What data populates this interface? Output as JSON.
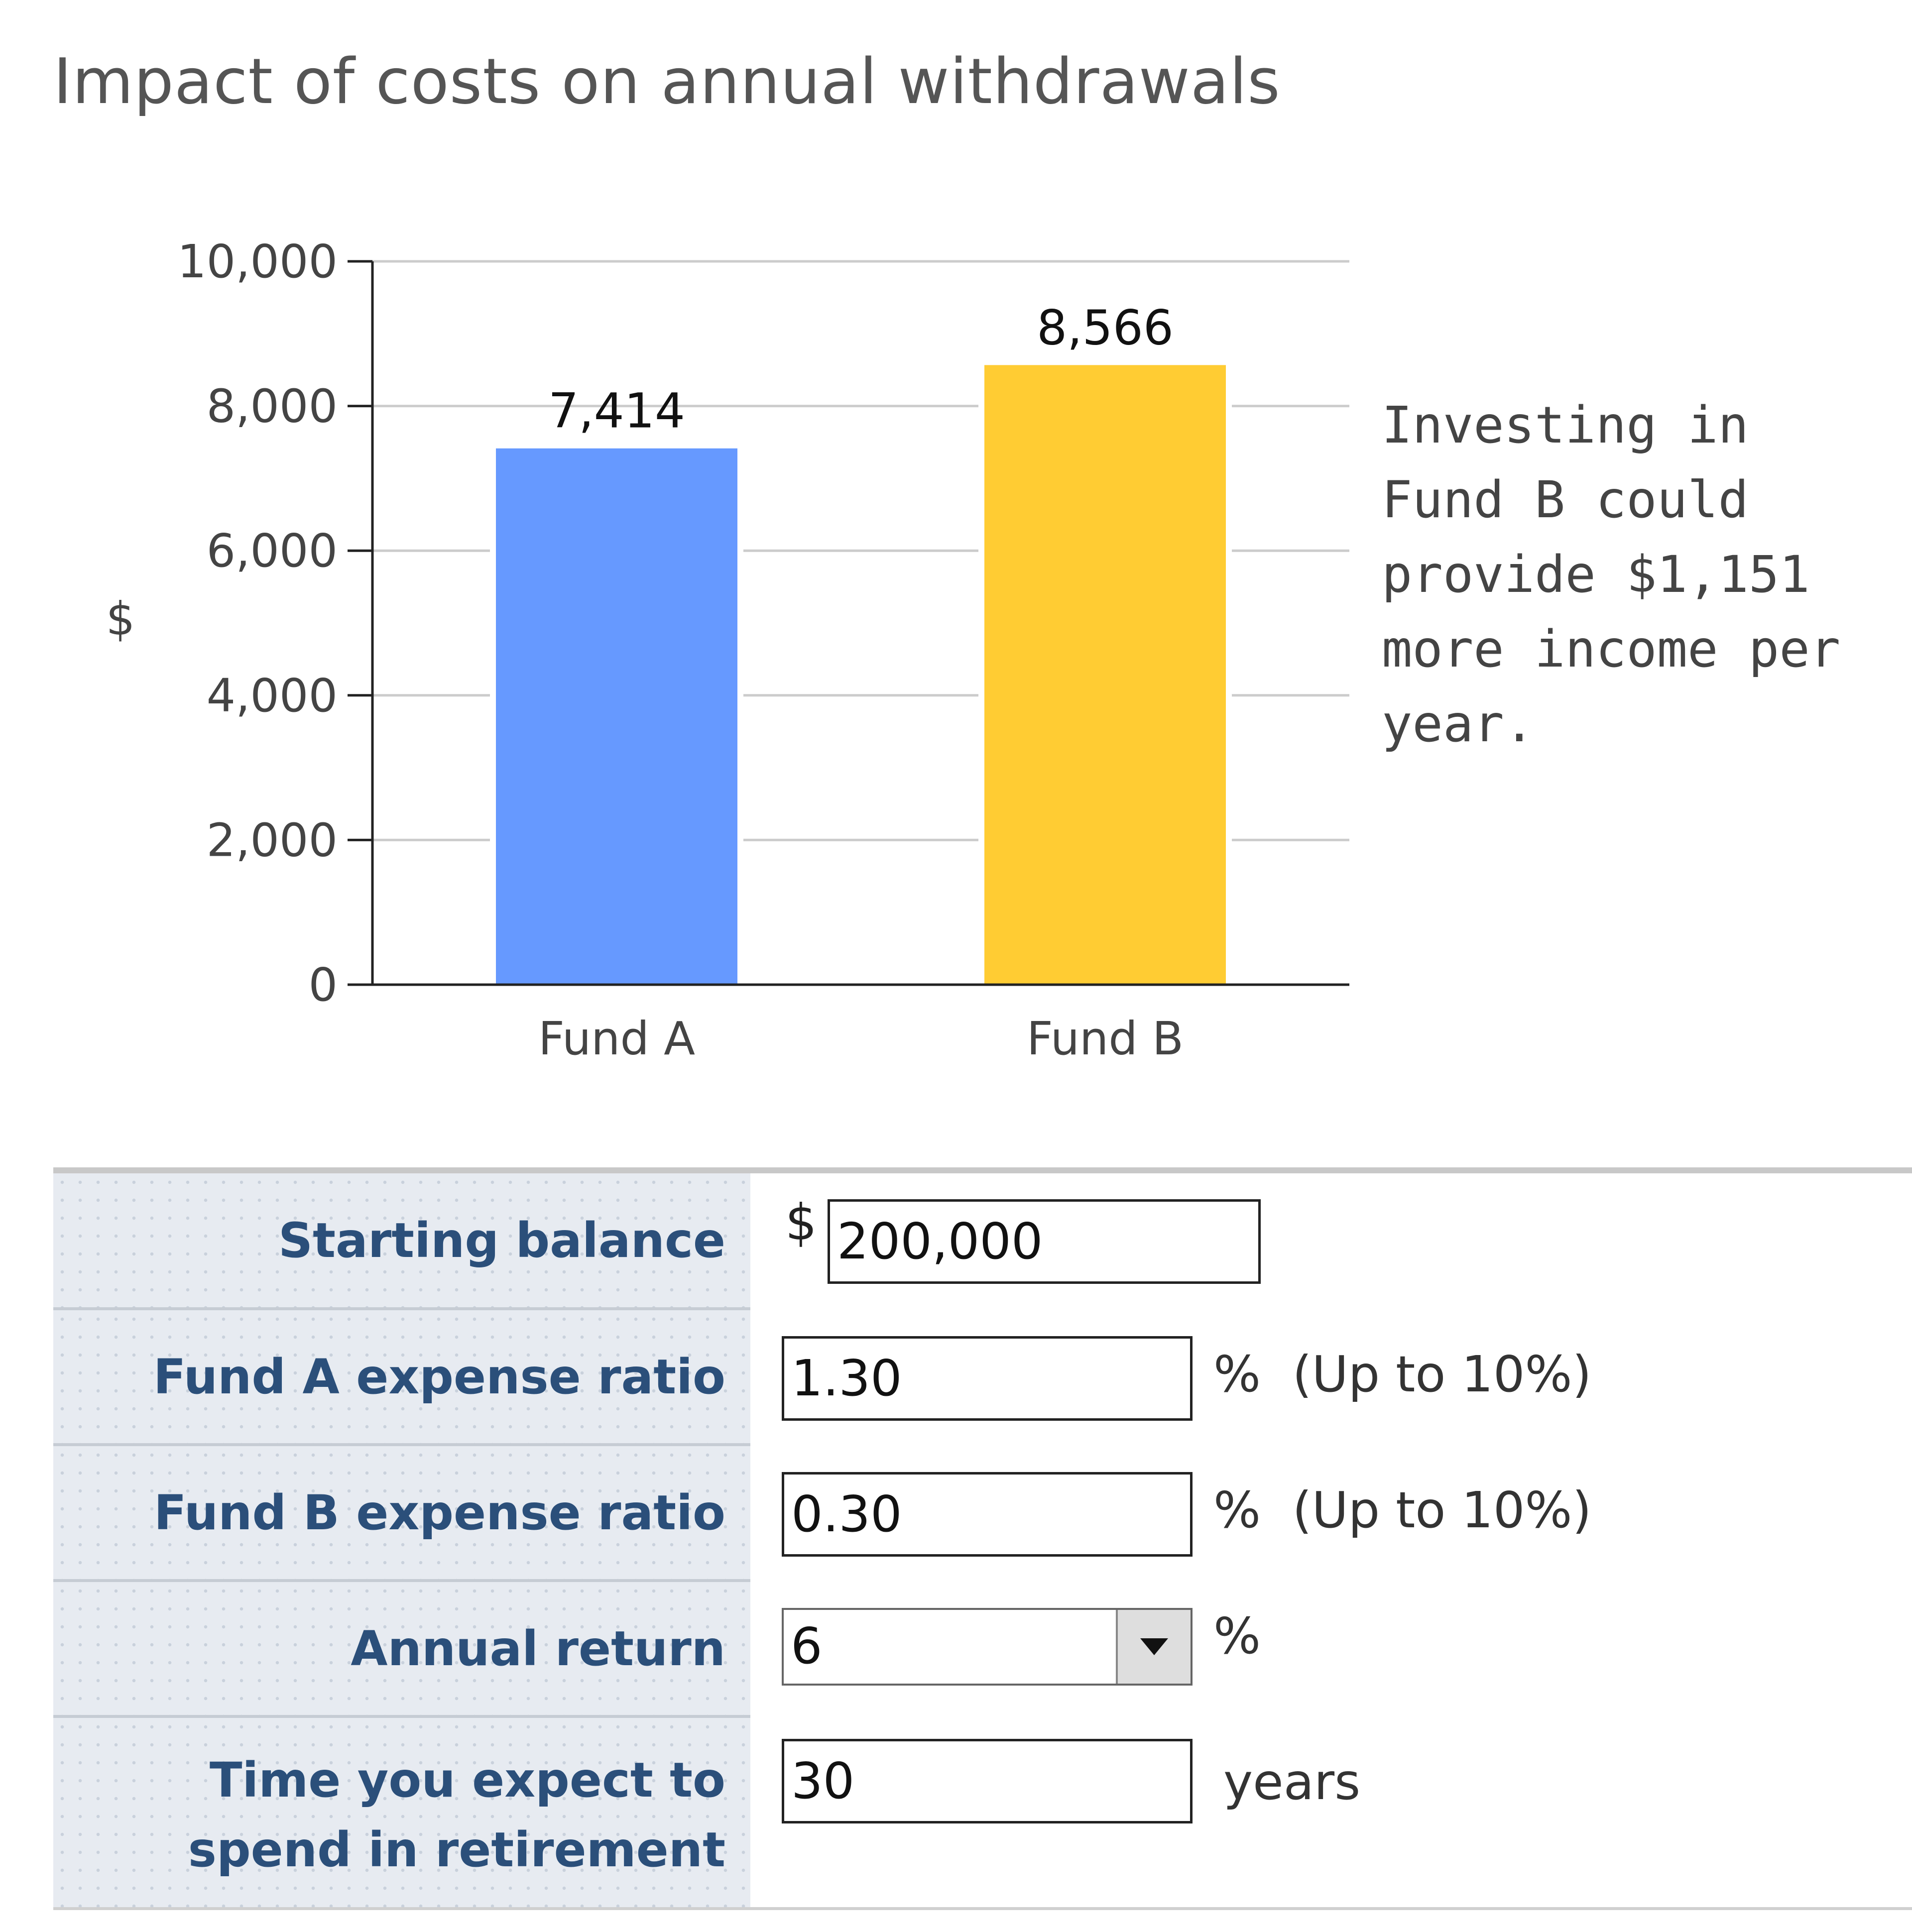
{
  "chart_data": {
    "type": "bar",
    "title": "Impact of costs on annual withdrawals",
    "ylabel": "$",
    "xlabel": "",
    "categories": [
      "Fund A",
      "Fund B"
    ],
    "values": [
      7414,
      8566
    ],
    "data_labels": [
      "7,414",
      "8,566"
    ],
    "colors": [
      "#6699ff",
      "#ffcc33"
    ],
    "ylim": [
      0,
      10000
    ],
    "yticks": [
      0,
      2000,
      4000,
      6000,
      8000,
      10000
    ],
    "ytick_labels": [
      "0",
      "2,000",
      "4,000",
      "6,000",
      "8,000",
      "10,000"
    ],
    "grid": true
  },
  "annotation": "Investing in\nFund B could\nprovide $1,151\nmore income per\n year.",
  "form": {
    "starting_balance": {
      "label": "Starting balance",
      "currency": "$",
      "value": "200,000"
    },
    "fund_a_expense": {
      "label": "Fund A expense ratio",
      "value": "1.30",
      "suffix": "%  (Up to 10%)"
    },
    "fund_b_expense": {
      "label": "Fund B expense ratio",
      "value": "0.30",
      "suffix": "%  (Up to 10%)"
    },
    "annual_return": {
      "label": "Annual return",
      "value": "6",
      "suffix": "%",
      "icon": "chevron-down-icon"
    },
    "retirement_time": {
      "label": "Time you expect to spend in retirement",
      "value": "30",
      "suffix": "years"
    }
  }
}
